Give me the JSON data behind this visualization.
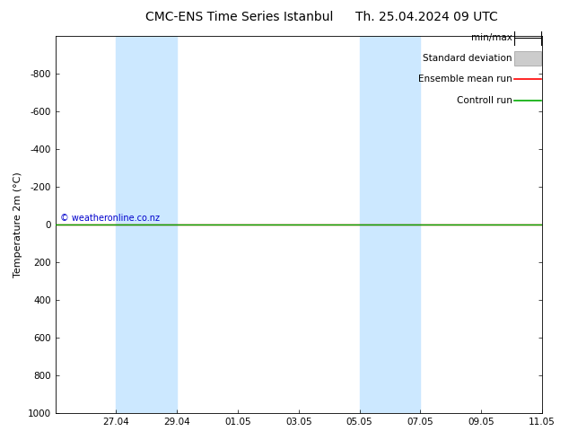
{
  "title_left": "CMC-ENS Time Series Istanbul",
  "title_right": "Th. 25.04.2024 09 UTC",
  "ylabel": "Temperature 2m (°C)",
  "ylim": [
    -1000,
    1000
  ],
  "yticks": [
    -800,
    -600,
    -400,
    -200,
    0,
    200,
    400,
    600,
    800,
    1000
  ],
  "xlim": [
    0,
    16
  ],
  "xtick_labels": [
    "27.04",
    "29.04",
    "01.05",
    "03.05",
    "05.05",
    "07.05",
    "09.05",
    "11.05"
  ],
  "xtick_positions": [
    2,
    4,
    6,
    8,
    10,
    12,
    14,
    16
  ],
  "shaded_bands": [
    {
      "x_start": 2,
      "x_end": 4
    },
    {
      "x_start": 10,
      "x_end": 12
    }
  ],
  "control_color": "#00aa00",
  "ensemble_color": "#ff0000",
  "minmax_color": "#000000",
  "std_fill_color": "#cccccc",
  "std_edge_color": "#999999",
  "background_color": "#ffffff",
  "watermark": "© weatheronline.co.nz",
  "watermark_color": "#0000cc",
  "shaded_color": "#cce8ff",
  "legend_labels": [
    "min/max",
    "Standard deviation",
    "Ensemble mean run",
    "Controll run"
  ],
  "title_fontsize": 10,
  "axis_fontsize": 8,
  "tick_fontsize": 7.5,
  "legend_fontsize": 7.5
}
